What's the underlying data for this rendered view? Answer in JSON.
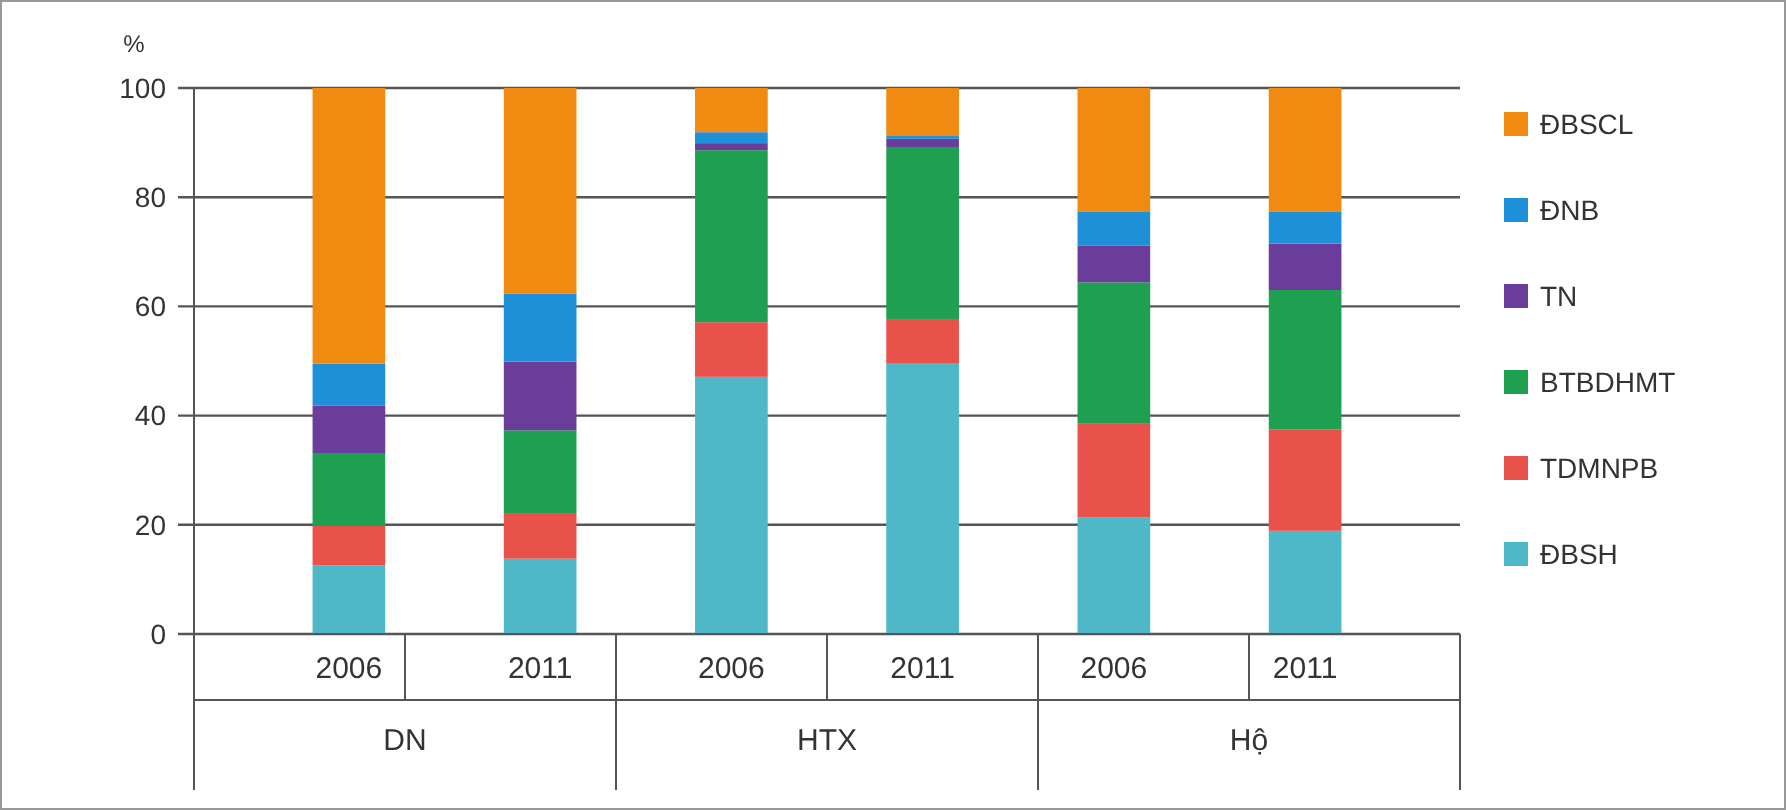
{
  "chart_data": {
    "type": "bar",
    "stacked": true,
    "ylabel": "%",
    "categories": [
      "2006",
      "2011",
      "2006",
      "2011",
      "2006",
      "2011"
    ],
    "annotations": [
      "DN",
      "HTX",
      "Hộ"
    ],
    "series": [
      {
        "name": "ĐBSH",
        "color": "#4fb8c8",
        "values": [
          12.6,
          13.8,
          47.1,
          49.5,
          21.4,
          18.9
        ]
      },
      {
        "name": "TDMNPB",
        "color": "#e8524a",
        "values": [
          7.2,
          8.2,
          10,
          8.2,
          17.1,
          18.6
        ]
      },
      {
        "name": "BTBDHMT",
        "color": "#1ea050",
        "values": [
          13.2,
          15.3,
          31.5,
          31.5,
          25.9,
          25.5
        ]
      },
      {
        "name": "TN",
        "color": "#6a3d9a",
        "values": [
          8.8,
          12.6,
          1.3,
          1.5,
          6.7,
          8.5
        ]
      },
      {
        "name": "ĐNB",
        "color": "#1e90d8",
        "values": [
          7.7,
          12.4,
          2,
          0.5,
          6.2,
          5.8
        ]
      },
      {
        "name": "ĐBSCL",
        "color": "#f08a10",
        "values": [
          50.5,
          37.7,
          8.1,
          8.8,
          22.7,
          22.7
        ]
      }
    ],
    "ylim": [
      0,
      100
    ],
    "yticks": [
      0,
      20,
      40,
      60,
      80,
      100
    ],
    "grid": "y",
    "legend": "right"
  }
}
